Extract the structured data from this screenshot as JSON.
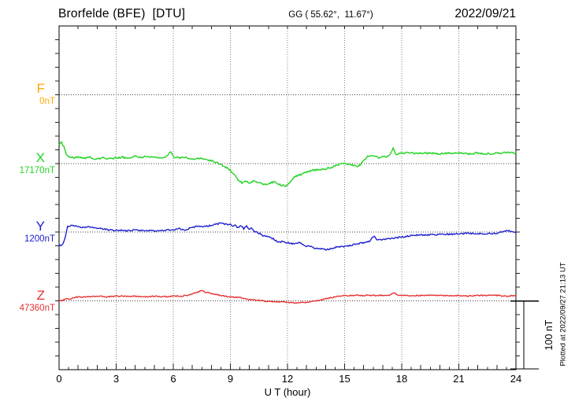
{
  "header": {
    "station": "Brorfelde (BFE)  [DTU]",
    "coordinates": "GG ( 55.62°,  11.67°)",
    "date": "2022/09/21"
  },
  "plotted_note": "Plotted at 2022/09/27 21:13 UT",
  "scale_bar": {
    "label": "100 nT",
    "span_nT": 100
  },
  "chart_data": {
    "type": "line",
    "title": "Brorfelde (BFE) [DTU] magnetogram 2022/09/21",
    "x": {
      "label": "U T (hour)",
      "unit": "hour",
      "range": [
        0,
        24
      ],
      "major_ticks": [
        0,
        3,
        6,
        9,
        12,
        15,
        18,
        21,
        24
      ],
      "minor_tick_step": 0.5,
      "grid": "dotted vertical every 3 h"
    },
    "y": {
      "unit": "nT",
      "tick_step_nT": 20,
      "baseline_spacing_nT": 100,
      "grid": "dotted horizontal at each component baseline"
    },
    "series": [
      {
        "name": "F",
        "color": "#ffaa00",
        "baseline_value": "0nT",
        "noise_nT": 0,
        "points": []
      },
      {
        "name": "X",
        "color": "#22d422",
        "baseline_value": "17170nT",
        "noise_nT": 1.3,
        "points": [
          [
            0,
            26
          ],
          [
            0.12,
            31
          ],
          [
            0.25,
            24
          ],
          [
            0.4,
            12
          ],
          [
            0.6,
            9
          ],
          [
            0.8,
            8
          ],
          [
            1,
            9
          ],
          [
            1.3,
            7
          ],
          [
            1.6,
            9
          ],
          [
            2,
            6
          ],
          [
            2.3,
            8
          ],
          [
            2.6,
            7
          ],
          [
            3,
            8
          ],
          [
            3.3,
            9
          ],
          [
            3.6,
            8
          ],
          [
            4,
            10
          ],
          [
            4.3,
            9
          ],
          [
            4.6,
            10
          ],
          [
            5,
            9
          ],
          [
            5.3,
            8
          ],
          [
            5.6,
            9
          ],
          [
            5.85,
            18
          ],
          [
            6,
            10
          ],
          [
            6.3,
            8
          ],
          [
            6.6,
            9
          ],
          [
            7,
            6
          ],
          [
            7.3,
            8
          ],
          [
            7.6,
            6
          ],
          [
            8,
            4
          ],
          [
            8.3,
            1
          ],
          [
            8.6,
            -3
          ],
          [
            9,
            -10
          ],
          [
            9.2,
            -17
          ],
          [
            9.4,
            -24
          ],
          [
            9.6,
            -28
          ],
          [
            9.8,
            -25
          ],
          [
            10,
            -29
          ],
          [
            10.2,
            -26
          ],
          [
            10.5,
            -28
          ],
          [
            10.8,
            -31
          ],
          [
            11,
            -29
          ],
          [
            11.3,
            -27
          ],
          [
            11.6,
            -31
          ],
          [
            11.9,
            -33
          ],
          [
            12.1,
            -29
          ],
          [
            12.4,
            -19
          ],
          [
            12.7,
            -16
          ],
          [
            13,
            -13
          ],
          [
            13.3,
            -10
          ],
          [
            13.6,
            -9
          ],
          [
            14,
            -8
          ],
          [
            14.3,
            -6
          ],
          [
            14.6,
            -2
          ],
          [
            15,
            0
          ],
          [
            15.3,
            -1
          ],
          [
            15.6,
            -4
          ],
          [
            15.8,
            -3
          ],
          [
            16,
            4
          ],
          [
            16.2,
            10
          ],
          [
            16.5,
            12
          ],
          [
            16.8,
            8
          ],
          [
            17,
            10
          ],
          [
            17.3,
            10
          ],
          [
            17.55,
            22
          ],
          [
            17.7,
            13
          ],
          [
            18,
            15
          ],
          [
            18.5,
            15
          ],
          [
            19,
            15
          ],
          [
            19.5,
            15
          ],
          [
            20,
            14
          ],
          [
            20.5,
            15
          ],
          [
            21,
            15
          ],
          [
            21.5,
            14
          ],
          [
            22,
            15
          ],
          [
            22.5,
            14
          ],
          [
            23,
            15
          ],
          [
            23.5,
            16
          ],
          [
            24,
            15
          ]
        ]
      },
      {
        "name": "Y",
        "color": "#2020d0",
        "baseline_value": "1200nT",
        "noise_nT": 1.1,
        "points": [
          [
            0,
            -18
          ],
          [
            0.15,
            -19
          ],
          [
            0.3,
            -10
          ],
          [
            0.45,
            8
          ],
          [
            0.6,
            10
          ],
          [
            0.8,
            9
          ],
          [
            1,
            8
          ],
          [
            1.3,
            7
          ],
          [
            1.6,
            8
          ],
          [
            2,
            6
          ],
          [
            2.3,
            5
          ],
          [
            2.6,
            3
          ],
          [
            3,
            3
          ],
          [
            3.5,
            2
          ],
          [
            4,
            3
          ],
          [
            4.5,
            2
          ],
          [
            5,
            2
          ],
          [
            5.5,
            3
          ],
          [
            6,
            3
          ],
          [
            6.3,
            5
          ],
          [
            6.6,
            3
          ],
          [
            7,
            7
          ],
          [
            7.3,
            9
          ],
          [
            7.6,
            8
          ],
          [
            8,
            10
          ],
          [
            8.2,
            11
          ],
          [
            8.5,
            13
          ],
          [
            8.8,
            11
          ],
          [
            9,
            11
          ],
          [
            9.1,
            8
          ],
          [
            9.25,
            10
          ],
          [
            9.4,
            6
          ],
          [
            9.55,
            10
          ],
          [
            9.7,
            5
          ],
          [
            9.85,
            9
          ],
          [
            10,
            3
          ],
          [
            10.1,
            7
          ],
          [
            10.25,
            1
          ],
          [
            10.4,
            0
          ],
          [
            10.55,
            -2
          ],
          [
            10.7,
            -5
          ],
          [
            10.9,
            -6
          ],
          [
            11.1,
            -8
          ],
          [
            11.3,
            -10
          ],
          [
            11.45,
            -14
          ],
          [
            11.6,
            -15
          ],
          [
            11.7,
            -13
          ],
          [
            11.9,
            -15
          ],
          [
            12.1,
            -16
          ],
          [
            12.4,
            -17
          ],
          [
            12.6,
            -15
          ],
          [
            12.8,
            -18
          ],
          [
            13,
            -20
          ],
          [
            13.2,
            -21
          ],
          [
            13.4,
            -23
          ],
          [
            13.6,
            -24
          ],
          [
            13.9,
            -25
          ],
          [
            14.2,
            -25
          ],
          [
            14.5,
            -22
          ],
          [
            15,
            -21
          ],
          [
            15.5,
            -18
          ],
          [
            16,
            -15
          ],
          [
            16.3,
            -13
          ],
          [
            16.55,
            -5
          ],
          [
            16.7,
            -12
          ],
          [
            17,
            -11
          ],
          [
            17.5,
            -9
          ],
          [
            18,
            -7
          ],
          [
            18.5,
            -5
          ],
          [
            19,
            -4
          ],
          [
            19.5,
            -4
          ],
          [
            20,
            -3
          ],
          [
            20.5,
            -3
          ],
          [
            21,
            -2
          ],
          [
            21.5,
            -2
          ],
          [
            22,
            -2
          ],
          [
            22.5,
            -2
          ],
          [
            23,
            -2
          ],
          [
            23.3,
            1
          ],
          [
            23.6,
            2
          ],
          [
            24,
            0
          ]
        ]
      },
      {
        "name": "Z",
        "color": "#e63232",
        "baseline_value": "47360nT",
        "noise_nT": 0.8,
        "points": [
          [
            0,
            0
          ],
          [
            0.2,
            1
          ],
          [
            0.4,
            3
          ],
          [
            0.6,
            2
          ],
          [
            0.8,
            5
          ],
          [
            1,
            6
          ],
          [
            1.5,
            6
          ],
          [
            2,
            7
          ],
          [
            2.5,
            6
          ],
          [
            3,
            7
          ],
          [
            3.5,
            7
          ],
          [
            4,
            7
          ],
          [
            4.5,
            6
          ],
          [
            5,
            7
          ],
          [
            5.5,
            6
          ],
          [
            6,
            7
          ],
          [
            6.5,
            7
          ],
          [
            7,
            10
          ],
          [
            7.3,
            13
          ],
          [
            7.5,
            15
          ],
          [
            7.7,
            13
          ],
          [
            8,
            11
          ],
          [
            8.5,
            8
          ],
          [
            9,
            6
          ],
          [
            9.5,
            5
          ],
          [
            10,
            2
          ],
          [
            10.5,
            1
          ],
          [
            11,
            -1
          ],
          [
            11.5,
            -1
          ],
          [
            12,
            -2
          ],
          [
            12.5,
            -3
          ],
          [
            13,
            -2
          ],
          [
            13.5,
            0
          ],
          [
            14,
            3
          ],
          [
            14.5,
            6
          ],
          [
            15,
            8
          ],
          [
            15.5,
            8
          ],
          [
            16,
            8
          ],
          [
            16.5,
            8
          ],
          [
            17,
            8
          ],
          [
            17.3,
            8
          ],
          [
            17.6,
            12
          ],
          [
            17.8,
            8
          ],
          [
            18,
            8
          ],
          [
            18.5,
            8
          ],
          [
            19,
            8
          ],
          [
            19.5,
            8
          ],
          [
            20,
            8
          ],
          [
            20.5,
            8
          ],
          [
            21,
            8
          ],
          [
            21.5,
            7
          ],
          [
            22,
            8
          ],
          [
            22.5,
            8
          ],
          [
            23,
            8
          ],
          [
            23.5,
            7
          ],
          [
            24,
            8
          ]
        ]
      }
    ]
  }
}
